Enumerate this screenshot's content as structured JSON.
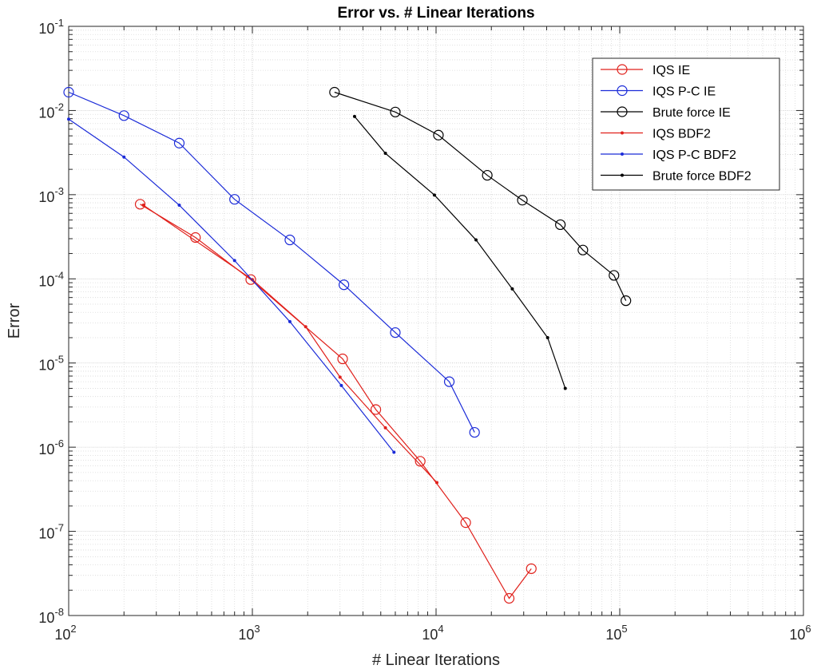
{
  "chart_data": {
    "type": "line",
    "title": "Error vs. # Linear Iterations",
    "xlabel": "# Linear Iterations",
    "ylabel": "Error",
    "xscale": "log",
    "yscale": "log",
    "xlim": [
      100,
      1000000
    ],
    "ylim": [
      1e-08,
      0.1
    ],
    "x_tick_labels": [
      {
        "value": 100,
        "base": "10",
        "exp": "2"
      },
      {
        "value": 1000,
        "base": "10",
        "exp": "3"
      },
      {
        "value": 10000,
        "base": "10",
        "exp": "4"
      },
      {
        "value": 100000,
        "base": "10",
        "exp": "5"
      },
      {
        "value": 1000000,
        "base": "10",
        "exp": "6"
      }
    ],
    "y_tick_labels": [
      {
        "value": 0.1,
        "base": "10",
        "exp": "-1"
      },
      {
        "value": 0.01,
        "base": "10",
        "exp": "-2"
      },
      {
        "value": 0.001,
        "base": "10",
        "exp": "-3"
      },
      {
        "value": 0.0001,
        "base": "10",
        "exp": "-4"
      },
      {
        "value": 1e-05,
        "base": "10",
        "exp": "-5"
      },
      {
        "value": 1e-06,
        "base": "10",
        "exp": "-6"
      },
      {
        "value": 1e-07,
        "base": "10",
        "exp": "-7"
      },
      {
        "value": 1e-08,
        "base": "10",
        "exp": "-8"
      }
    ],
    "grid": true,
    "minor_grid": true,
    "legend_position": "top-right",
    "series": [
      {
        "name": "IQS IE",
        "color": "#e0201b",
        "marker": "circle",
        "x": [
          245,
          490,
          980,
          3100,
          4700,
          8200,
          14500,
          25000,
          33000
        ],
        "y": [
          0.00077,
          0.00031,
          9.8e-05,
          1.12e-05,
          2.8e-06,
          6.8e-07,
          1.27e-07,
          1.6e-08,
          3.6e-08
        ]
      },
      {
        "name": "IQS P-C IE",
        "color": "#1b2bd8",
        "marker": "circle",
        "x": [
          100,
          200,
          400,
          800,
          1600,
          3150,
          6000,
          11800,
          16200
        ],
        "y": [
          0.0165,
          0.0087,
          0.0041,
          0.00088,
          0.00029,
          8.5e-05,
          2.3e-05,
          6e-06,
          1.5e-06
        ]
      },
      {
        "name": "Brute force IE",
        "color": "#000000",
        "marker": "circle",
        "x": [
          2800,
          6000,
          10300,
          19000,
          29500,
          47500,
          63000,
          93000,
          108000
        ],
        "y": [
          0.0165,
          0.0096,
          0.0051,
          0.0017,
          0.00086,
          0.00044,
          0.00022,
          0.00011,
          5.5e-05
        ]
      },
      {
        "name": "IQS BDF2",
        "color": "#e0201b",
        "marker": "dot",
        "x": [
          255,
          1000,
          1950,
          3000,
          5300,
          10100
        ],
        "y": [
          0.00075,
          9.8e-05,
          2.7e-05,
          6.8e-06,
          1.7e-06,
          3.8e-07
        ]
      },
      {
        "name": "IQS P-C BDF2",
        "color": "#1b2bd8",
        "marker": "dot",
        "x": [
          100,
          200,
          400,
          800,
          1600,
          3050,
          5900
        ],
        "y": [
          0.0079,
          0.0028,
          0.00075,
          0.000165,
          3.1e-05,
          5.4e-06,
          8.7e-07
        ]
      },
      {
        "name": "Brute force BDF2",
        "color": "#000000",
        "marker": "dot",
        "x": [
          3600,
          5300,
          9800,
          16500,
          26000,
          40500,
          50500
        ],
        "y": [
          0.0085,
          0.0031,
          0.00099,
          0.00029,
          7.6e-05,
          2e-05,
          5e-06
        ]
      }
    ]
  }
}
